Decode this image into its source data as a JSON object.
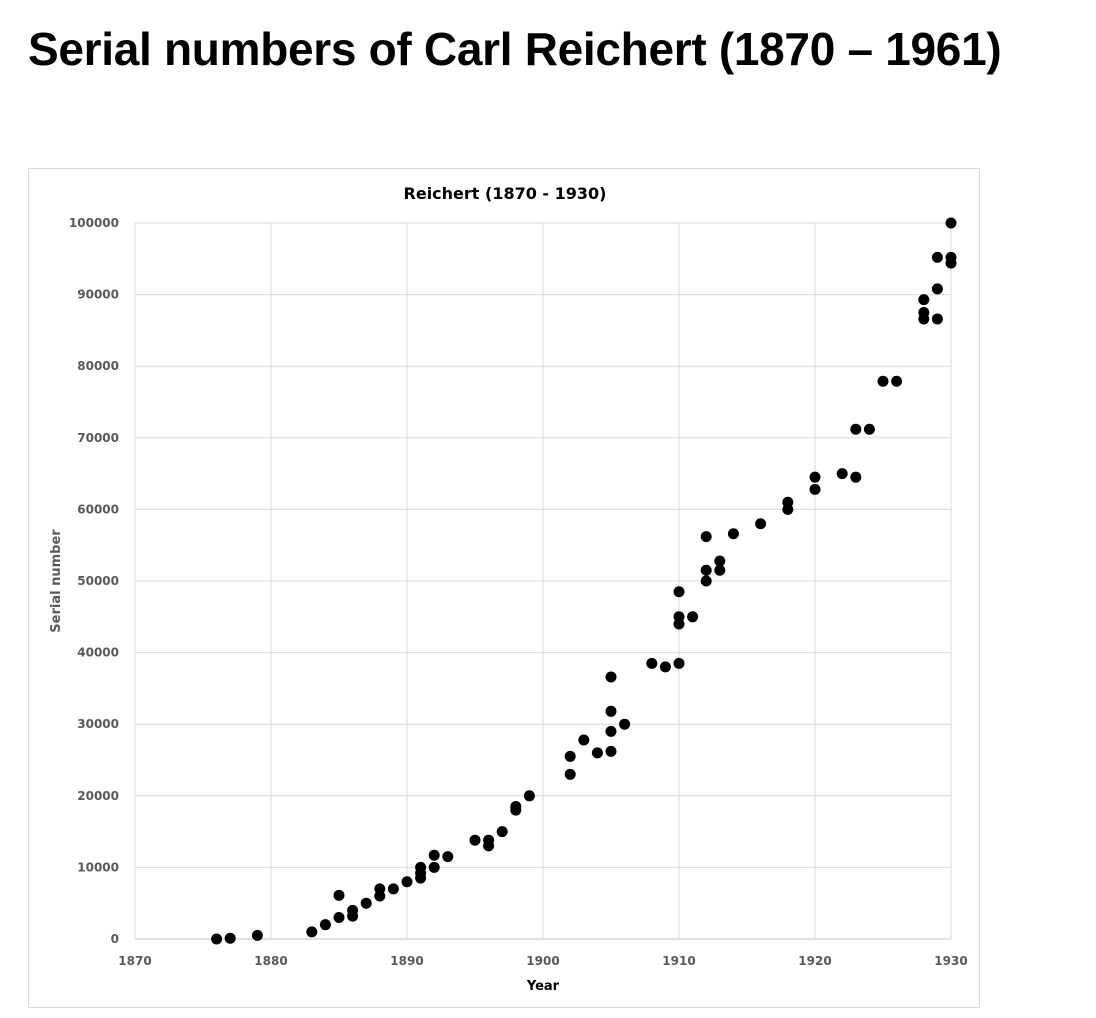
{
  "page": {
    "title": "Serial numbers of Carl Reichert (1870 – 1961)"
  },
  "chart_data": {
    "type": "scatter",
    "title": "Reichert (1870 - 1930)",
    "xlabel": "Year",
    "ylabel": "Serial number",
    "xlim": [
      1870,
      1930
    ],
    "ylim": [
      0,
      100000
    ],
    "xticks": [
      "1870",
      "1880",
      "1890",
      "1900",
      "1910",
      "1920",
      "1930"
    ],
    "yticks": [
      "0",
      "10000",
      "20000",
      "30000",
      "40000",
      "50000",
      "60000",
      "70000",
      "80000",
      "90000",
      "100000"
    ],
    "grid": true,
    "legend": "none",
    "marker_color": "#000000",
    "grid_color": "#d9d9d9",
    "axis_label_color": "#595959",
    "points": [
      [
        1876,
        0
      ],
      [
        1877,
        100
      ],
      [
        1879,
        500
      ],
      [
        1883,
        1000
      ],
      [
        1884,
        2000
      ],
      [
        1885,
        3000
      ],
      [
        1885,
        6100
      ],
      [
        1886,
        3200
      ],
      [
        1886,
        4000
      ],
      [
        1887,
        5000
      ],
      [
        1888,
        6000
      ],
      [
        1888,
        7000
      ],
      [
        1889,
        7000
      ],
      [
        1890,
        8000
      ],
      [
        1891,
        8500
      ],
      [
        1891,
        9200
      ],
      [
        1891,
        10000
      ],
      [
        1892,
        10000
      ],
      [
        1892,
        11700
      ],
      [
        1893,
        11500
      ],
      [
        1895,
        13800
      ],
      [
        1896,
        13000
      ],
      [
        1896,
        13800
      ],
      [
        1897,
        15000
      ],
      [
        1898,
        18000
      ],
      [
        1898,
        18500
      ],
      [
        1899,
        20000
      ],
      [
        1902,
        23000
      ],
      [
        1902,
        25500
      ],
      [
        1903,
        27800
      ],
      [
        1904,
        26000
      ],
      [
        1905,
        26200
      ],
      [
        1905,
        29000
      ],
      [
        1905,
        31800
      ],
      [
        1905,
        36600
      ],
      [
        1906,
        30000
      ],
      [
        1908,
        38500
      ],
      [
        1909,
        38000
      ],
      [
        1910,
        38500
      ],
      [
        1910,
        44000
      ],
      [
        1910,
        45000
      ],
      [
        1910,
        48500
      ],
      [
        1911,
        45000
      ],
      [
        1912,
        50000
      ],
      [
        1912,
        51500
      ],
      [
        1912,
        56200
      ],
      [
        1913,
        51500
      ],
      [
        1913,
        52800
      ],
      [
        1914,
        56600
      ],
      [
        1916,
        58000
      ],
      [
        1918,
        60000
      ],
      [
        1918,
        61000
      ],
      [
        1920,
        62800
      ],
      [
        1920,
        64500
      ],
      [
        1922,
        65000
      ],
      [
        1923,
        64500
      ],
      [
        1923,
        71200
      ],
      [
        1924,
        71200
      ],
      [
        1925,
        77900
      ],
      [
        1926,
        77900
      ],
      [
        1928,
        86600
      ],
      [
        1928,
        87500
      ],
      [
        1928,
        89300
      ],
      [
        1929,
        86600
      ],
      [
        1929,
        90800
      ],
      [
        1929,
        95200
      ],
      [
        1930,
        94400
      ],
      [
        1930,
        95200
      ],
      [
        1930,
        100000
      ]
    ]
  }
}
